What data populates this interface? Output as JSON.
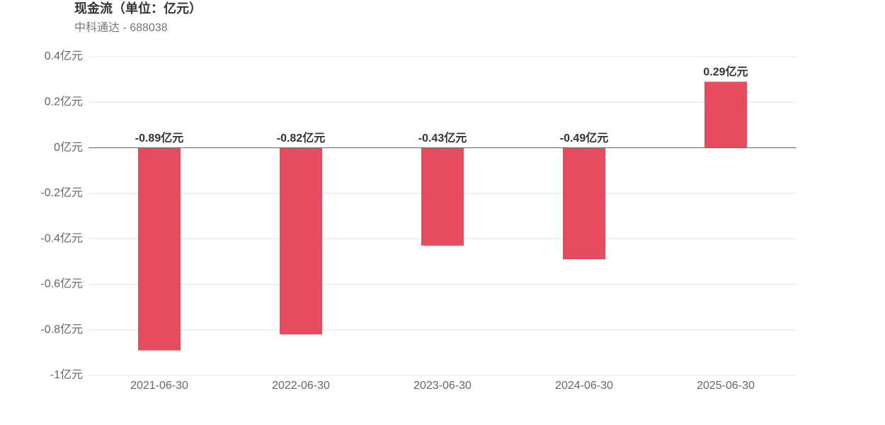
{
  "chart_data": {
    "type": "bar",
    "title": "现金流（单位：亿元）",
    "subtitle": "中科通达 - 688038",
    "categories": [
      "2021-06-30",
      "2022-06-30",
      "2023-06-30",
      "2024-06-30",
      "2025-06-30"
    ],
    "values": [
      -0.89,
      -0.82,
      -0.43,
      -0.49,
      0.29
    ],
    "value_labels": [
      "-0.89亿元",
      "-0.82亿元",
      "-0.43亿元",
      "-0.49亿元",
      "0.29亿元"
    ],
    "color": "#e64c5e",
    "ylim": [
      -1,
      0.4
    ],
    "yticks": [
      {
        "value": -1,
        "label": "-1亿元"
      },
      {
        "value": -0.8,
        "label": "-0.8亿元"
      },
      {
        "value": -0.6,
        "label": "-0.6亿元"
      },
      {
        "value": -0.4,
        "label": "-0.4亿元"
      },
      {
        "value": -0.2,
        "label": "-0.2亿元"
      },
      {
        "value": 0,
        "label": "0亿元"
      },
      {
        "value": 0.2,
        "label": "0.2亿元"
      },
      {
        "value": 0.4,
        "label": "0.4亿元"
      }
    ],
    "grid": true
  }
}
